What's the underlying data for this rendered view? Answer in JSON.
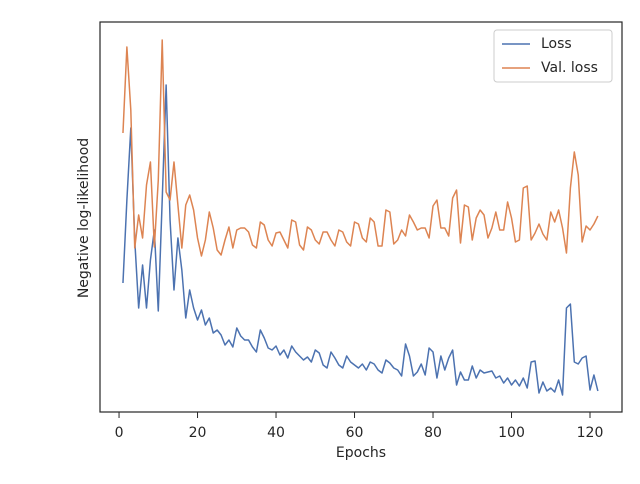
{
  "chart_data": {
    "type": "line",
    "x_label": "Epochs",
    "y_label": "Negative log-likelihood",
    "x": [
      1,
      2,
      3,
      4,
      5,
      6,
      7,
      8,
      9,
      10,
      11,
      12,
      13,
      14,
      15,
      16,
      17,
      18,
      19,
      20,
      21,
      22,
      23,
      24,
      25,
      26,
      27,
      28,
      29,
      30,
      31,
      32,
      33,
      34,
      35,
      36,
      37,
      38,
      39,
      40,
      41,
      42,
      43,
      44,
      45,
      46,
      47,
      48,
      49,
      50,
      51,
      52,
      53,
      54,
      55,
      56,
      57,
      58,
      59,
      60,
      61,
      62,
      63,
      64,
      65,
      66,
      67,
      68,
      69,
      70,
      71,
      72,
      73,
      74,
      75,
      76,
      77,
      78,
      79,
      80,
      81,
      82,
      83,
      84,
      85,
      86,
      87,
      88,
      89,
      90,
      91,
      92,
      93,
      94,
      95,
      96,
      97,
      98,
      99,
      100,
      101,
      102,
      103,
      104,
      105,
      106,
      107,
      108,
      109,
      110,
      111,
      112,
      113,
      114,
      115,
      116,
      117,
      118,
      119,
      120,
      121,
      122
    ],
    "series": [
      {
        "name": "Loss",
        "color": "#4c72b0",
        "values": [
          129,
          212,
          284,
          172,
          104,
          147,
          104,
          152,
          182,
          101,
          212,
          327,
          192,
          122,
          174,
          142,
          94,
          122,
          104,
          92,
          102,
          87,
          94,
          79,
          82,
          77,
          67,
          72,
          65,
          84,
          76,
          72,
          72,
          65,
          60,
          82,
          74,
          64,
          62,
          66,
          57,
          62,
          54,
          66,
          60,
          56,
          52,
          55,
          50,
          62,
          59,
          47,
          44,
          60,
          54,
          47,
          44,
          56,
          50,
          47,
          44,
          48,
          42,
          50,
          48,
          42,
          39,
          52,
          49,
          44,
          42,
          36,
          68,
          56,
          36,
          40,
          48,
          37,
          64,
          60,
          34,
          56,
          42,
          54,
          62,
          27,
          40,
          32,
          32,
          46,
          34,
          42,
          39,
          40,
          41,
          34,
          36,
          29,
          34,
          27,
          32,
          26,
          34,
          24,
          50,
          51,
          19,
          30,
          21,
          24,
          20,
          32,
          17,
          104,
          108,
          50,
          48,
          54,
          56,
          22,
          37,
          21
        ]
      },
      {
        "name": "Val. loss",
        "color": "#dd8452",
        "values": [
          279,
          365,
          302,
          164,
          197,
          174,
          227,
          250,
          165,
          232,
          372,
          220,
          212,
          250,
          207,
          164,
          207,
          217,
          202,
          174,
          156,
          172,
          200,
          184,
          162,
          157,
          172,
          185,
          164,
          182,
          184,
          184,
          180,
          167,
          164,
          190,
          187,
          172,
          166,
          179,
          180,
          172,
          164,
          192,
          190,
          167,
          162,
          185,
          182,
          172,
          168,
          180,
          180,
          172,
          166,
          182,
          180,
          170,
          166,
          190,
          188,
          174,
          170,
          194,
          190,
          166,
          166,
          202,
          200,
          168,
          172,
          182,
          176,
          197,
          190,
          182,
          184,
          184,
          174,
          206,
          212,
          184,
          184,
          176,
          214,
          222,
          169,
          207,
          205,
          172,
          194,
          202,
          197,
          174,
          184,
          200,
          182,
          182,
          210,
          194,
          170,
          172,
          224,
          226,
          172,
          179,
          188,
          178,
          172,
          200,
          190,
          202,
          184,
          159,
          224,
          260,
          237,
          170,
          186,
          182,
          188,
          196
        ]
      }
    ],
    "xlim": [
      -4.85,
      128.15
    ],
    "xticks": [
      0,
      20,
      40,
      60,
      80,
      100,
      120
    ],
    "ylim": [
      0,
      390
    ],
    "legend": "upper right"
  }
}
